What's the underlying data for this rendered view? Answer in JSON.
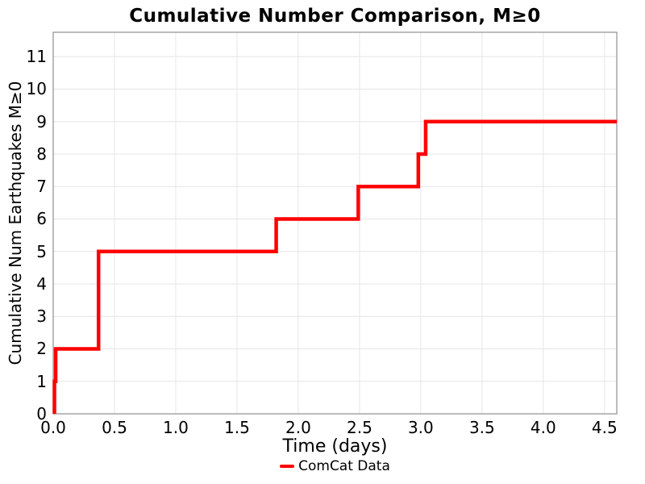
{
  "chart_data": {
    "type": "line",
    "style": "step-post",
    "title": "Cumulative Number Comparison, M≥0",
    "xlabel": "Time (days)",
    "ylabel": "Cumulative Num Earthquakes M≥0",
    "xlim": [
      0,
      4.6
    ],
    "ylim": [
      0,
      11.75
    ],
    "grid": true,
    "xticks": {
      "values": [
        0,
        0.5,
        1,
        1.5,
        2,
        2.5,
        3,
        3.5,
        4,
        4.5
      ],
      "labels": [
        "0.0",
        "0.5",
        "1.0",
        "1.5",
        "2.0",
        "2.5",
        "3.0",
        "3.5",
        "4.0",
        "4.5"
      ]
    },
    "yticks": {
      "values": [
        0,
        1,
        2,
        3,
        4,
        5,
        6,
        7,
        8,
        9,
        10,
        11
      ],
      "labels": [
        "0",
        "1",
        "2",
        "3",
        "4",
        "5",
        "6",
        "7",
        "8",
        "9",
        "10",
        "11"
      ]
    },
    "series": [
      {
        "name": "ComCat Data",
        "color": "#ff0000",
        "line_width": 4.5,
        "event_times_days": [
          0.01,
          0.02,
          0.37,
          0.37,
          0.37,
          1.82,
          2.49,
          2.98,
          3.04
        ],
        "cumulative_counts": [
          1,
          2,
          3,
          4,
          5,
          6,
          7,
          8,
          9
        ],
        "start_y": 0,
        "extend_to_x": 4.6
      }
    ],
    "legend": {
      "position": "bottom-center",
      "entries": [
        {
          "label": "ComCat Data",
          "color": "#ff0000"
        }
      ]
    },
    "colors": {
      "background": "#ffffff",
      "grid": "#e6e6e6",
      "spine": "#8f8f8f",
      "text": "#000000"
    }
  }
}
